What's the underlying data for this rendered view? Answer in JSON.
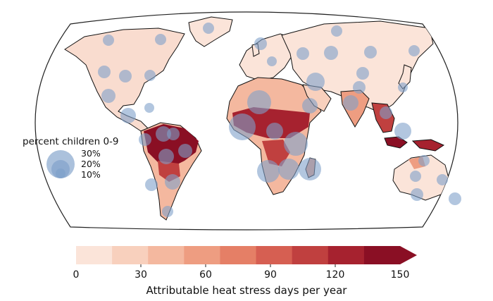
{
  "legend": {
    "title": "percent children 0-9",
    "labels": [
      "30%",
      "20%",
      "10%"
    ]
  },
  "colorbar": {
    "ticks": [
      "0",
      "30",
      "60",
      "90",
      "120",
      "150"
    ],
    "label": "Attributable heat stress days per year",
    "colors": [
      "#fbe4d9",
      "#f8d0bd",
      "#f4b89f",
      "#ee9d81",
      "#e57f66",
      "#d65f52",
      "#c0403f",
      "#a6222f",
      "#8a0f24"
    ]
  },
  "bubble_color": "#7ea0c9"
}
